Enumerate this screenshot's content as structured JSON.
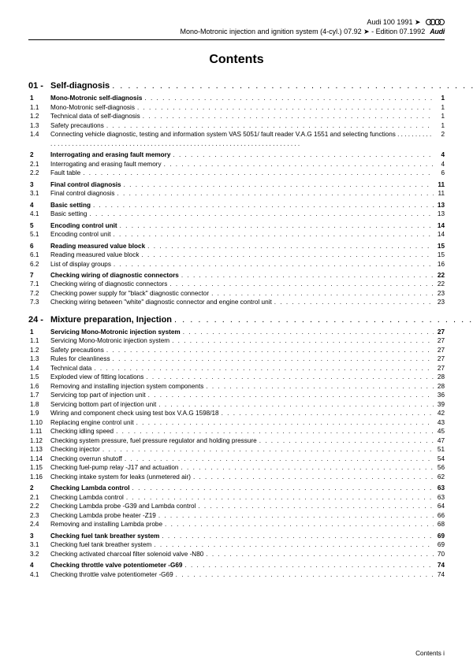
{
  "header": {
    "line1_model": "Audi 100 1991 ➤",
    "line2_doc": "Mono-Motronic injection and ignition system (4-cyl.) 07.92 ➤ - Edition 07.1992",
    "brand_word": "Audi"
  },
  "title": "Contents",
  "footer": {
    "label": "Contents",
    "page": "i"
  },
  "chapters": [
    {
      "num": "01 -",
      "title": "Self-diagnosis",
      "page": "1",
      "entries": [
        {
          "n": "1",
          "t": "Mono-Motronic self-diagnosis",
          "p": "1",
          "b": true
        },
        {
          "n": "1.1",
          "t": "Mono-Motronic self-diagnosis",
          "p": "1"
        },
        {
          "n": "1.2",
          "t": "Technical data of self-diagnosis",
          "p": "1"
        },
        {
          "n": "1.3",
          "t": "Safety precautions",
          "p": "1"
        },
        {
          "n": "1.4",
          "t": "Connecting vehicle diagnostic, testing and information system VAS 5051/ fault reader V.A.G 1551 and selecting functions",
          "p": "2",
          "ml": true
        },
        {
          "n": "2",
          "t": "Interrogating and erasing fault memory",
          "p": "4",
          "b": true
        },
        {
          "n": "2.1",
          "t": "Interrogating and erasing fault memory",
          "p": "4"
        },
        {
          "n": "2.2",
          "t": "Fault table",
          "p": "6"
        },
        {
          "n": "3",
          "t": "Final control diagnosis",
          "p": "11",
          "b": true
        },
        {
          "n": "3.1",
          "t": "Final control diagnosis",
          "p": "11"
        },
        {
          "n": "4",
          "t": "Basic setting",
          "p": "13",
          "b": true
        },
        {
          "n": "4.1",
          "t": "Basic setting",
          "p": "13"
        },
        {
          "n": "5",
          "t": "Encoding control unit",
          "p": "14",
          "b": true
        },
        {
          "n": "5.1",
          "t": "Encoding control unit",
          "p": "14"
        },
        {
          "n": "6",
          "t": "Reading measured value block",
          "p": "15",
          "b": true
        },
        {
          "n": "6.1",
          "t": "Reading measured value block",
          "p": "15"
        },
        {
          "n": "6.2",
          "t": "List of display groups",
          "p": "16"
        },
        {
          "n": "7",
          "t": "Checking wiring of diagnostic connectors",
          "p": "22",
          "b": true
        },
        {
          "n": "7.1",
          "t": "Checking wiring of diagnostic connectors",
          "p": "22"
        },
        {
          "n": "7.2",
          "t": "Checking power supply for \"black\" diagnostic connector",
          "p": "23"
        },
        {
          "n": "7.3",
          "t": "Checking wiring between \"white\" diagnostic connector and engine control unit",
          "p": "23"
        }
      ]
    },
    {
      "num": "24 -",
      "title": "Mixture preparation, Injection",
      "page": "27",
      "entries": [
        {
          "n": "1",
          "t": "Servicing Mono-Motronic injection system",
          "p": "27",
          "b": true
        },
        {
          "n": "1.1",
          "t": "Servicing Mono-Motronic injection system",
          "p": "27"
        },
        {
          "n": "1.2",
          "t": "Safety precautions",
          "p": "27"
        },
        {
          "n": "1.3",
          "t": "Rules for cleanliness",
          "p": "27"
        },
        {
          "n": "1.4",
          "t": "Technical data",
          "p": "27"
        },
        {
          "n": "1.5",
          "t": "Exploded view of fitting locations",
          "p": "28"
        },
        {
          "n": "1.6",
          "t": "Removing and installing injection system components",
          "p": "28"
        },
        {
          "n": "1.7",
          "t": "Servicing top part of injection unit",
          "p": "36"
        },
        {
          "n": "1.8",
          "t": "Servicing bottom part of injection unit",
          "p": "39"
        },
        {
          "n": "1.9",
          "t": "Wiring and component check using test box V.A.G 1598/18",
          "p": "42"
        },
        {
          "n": "1.10",
          "t": "Replacing engine control unit",
          "p": "43"
        },
        {
          "n": "1.11",
          "t": "Checking idling speed",
          "p": "45"
        },
        {
          "n": "1.12",
          "t": "Checking system pressure, fuel pressure regulator and holding pressure",
          "p": "47"
        },
        {
          "n": "1.13",
          "t": "Checking injector",
          "p": "51"
        },
        {
          "n": "1.14",
          "t": "Checking overrun shutoff",
          "p": "54"
        },
        {
          "n": "1.15",
          "t": "Checking fuel-pump relay -J17 and actuation",
          "p": "56"
        },
        {
          "n": "1.16",
          "t": "Checking intake system for leaks (unmetered air)",
          "p": "62"
        },
        {
          "n": "2",
          "t": "Checking Lambda control",
          "p": "63",
          "b": true
        },
        {
          "n": "2.1",
          "t": "Checking Lambda control",
          "p": "63"
        },
        {
          "n": "2.2",
          "t": "Checking Lambda probe -G39 and Lambda control",
          "p": "64"
        },
        {
          "n": "2.3",
          "t": "Checking Lambda probe heater -Z19",
          "p": "66"
        },
        {
          "n": "2.4",
          "t": "Removing and installing Lambda probe",
          "p": "68"
        },
        {
          "n": "3",
          "t": "Checking fuel tank breather system",
          "p": "69",
          "b": true
        },
        {
          "n": "3.1",
          "t": "Checking fuel tank breather system",
          "p": "69"
        },
        {
          "n": "3.2",
          "t": "Checking activated charcoal filter solenoid valve -N80",
          "p": "70"
        },
        {
          "n": "4",
          "t": "Checking throttle valve potentiometer -G69",
          "p": "74",
          "b": true
        },
        {
          "n": "4.1",
          "t": "Checking throttle valve potentiometer -G69",
          "p": "74"
        }
      ]
    }
  ]
}
